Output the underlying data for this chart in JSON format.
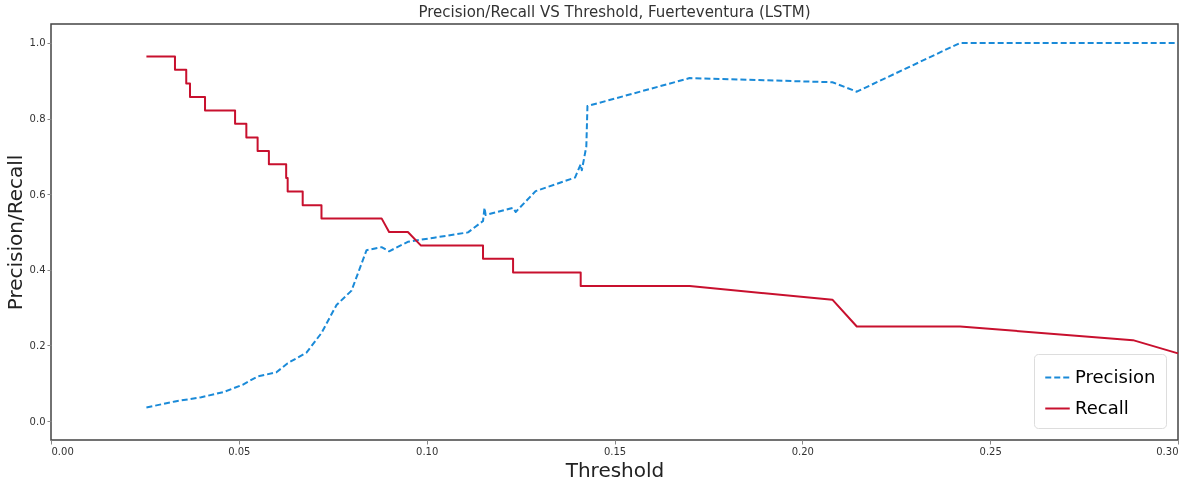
{
  "chart_data": {
    "type": "line",
    "title": "Precision/Recall VS Threshold, Fuerteventura (LSTM)",
    "xlabel": "Threshold",
    "ylabel": "Precision/Recall",
    "xlim": [
      0,
      0.3
    ],
    "ylim": [
      -0.05,
      1.05
    ],
    "xticks": [
      {
        "value": 0,
        "label": "0.00"
      },
      {
        "value": 0.05,
        "label": "0.05"
      },
      {
        "value": 0.1,
        "label": "0.10"
      },
      {
        "value": 0.15,
        "label": "0.15"
      },
      {
        "value": 0.2,
        "label": "0.20"
      },
      {
        "value": 0.25,
        "label": "0.25"
      },
      {
        "value": 0.3,
        "label": "0.30"
      }
    ],
    "yticks": [
      {
        "value": 0,
        "label": "0.0"
      },
      {
        "value": 0.2,
        "label": "0.2"
      },
      {
        "value": 0.4,
        "label": "0.4"
      },
      {
        "value": 0.6,
        "label": "0.6"
      },
      {
        "value": 0.8,
        "label": "0.8"
      },
      {
        "value": 1,
        "label": "1.0"
      }
    ],
    "grid": false,
    "legend": "bottom right",
    "marker": "none",
    "series": [
      {
        "name": "Precision",
        "color": "#1a8ad8",
        "line_style": "dashed",
        "x": [
          0.0254,
          0.033,
          0.04,
          0.046,
          0.051,
          0.055,
          0.06,
          0.063,
          0.068,
          0.072,
          0.076,
          0.08,
          0.084,
          0.088,
          0.09,
          0.095,
          0.098,
          0.102,
          0.111,
          0.115,
          0.1154,
          0.1157,
          0.123,
          0.1237,
          0.129,
          0.1395,
          0.141,
          0.1413,
          0.1425,
          0.1428,
          0.17,
          0.208,
          0.2145,
          0.242,
          0.3
        ],
        "values": [
          0.036,
          0.052,
          0.063,
          0.077,
          0.096,
          0.118,
          0.129,
          0.153,
          0.181,
          0.233,
          0.307,
          0.345,
          0.452,
          0.46,
          0.449,
          0.474,
          0.479,
          0.485,
          0.499,
          0.529,
          0.564,
          0.545,
          0.564,
          0.553,
          0.608,
          0.644,
          0.679,
          0.663,
          0.726,
          0.833,
          0.907,
          0.896,
          0.871,
          1.0,
          1.0
        ]
      },
      {
        "name": "Recall",
        "color": "#c8102e",
        "line_style": "solid",
        "x": [
          0.0254,
          0.033,
          0.033,
          0.036,
          0.036,
          0.037,
          0.037,
          0.041,
          0.041,
          0.049,
          0.049,
          0.052,
          0.052,
          0.055,
          0.055,
          0.058,
          0.058,
          0.0626,
          0.0626,
          0.063,
          0.063,
          0.067,
          0.067,
          0.072,
          0.072,
          0.088,
          0.09,
          0.095,
          0.0985,
          0.115,
          0.115,
          0.123,
          0.123,
          0.141,
          0.141,
          0.17,
          0.208,
          0.2145,
          0.242,
          0.288,
          0.3
        ],
        "values": [
          0.964,
          0.964,
          0.929,
          0.929,
          0.893,
          0.893,
          0.857,
          0.857,
          0.821,
          0.821,
          0.786,
          0.786,
          0.75,
          0.75,
          0.714,
          0.714,
          0.679,
          0.679,
          0.643,
          0.643,
          0.607,
          0.607,
          0.571,
          0.571,
          0.536,
          0.536,
          0.5,
          0.5,
          0.464,
          0.464,
          0.429,
          0.429,
          0.393,
          0.393,
          0.357,
          0.357,
          0.321,
          0.25,
          0.25,
          0.214,
          0.179
        ]
      }
    ]
  }
}
